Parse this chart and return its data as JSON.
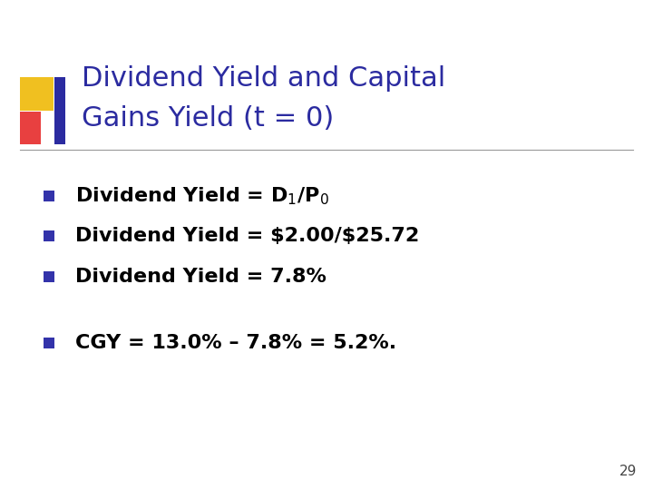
{
  "title_line1": "Dividend Yield and Capital",
  "title_line2": "Gains Yield (t = 0)",
  "title_color": "#2B2BA0",
  "background_color": "#FFFFFF",
  "bullet_color": "#3333AA",
  "bullet_items_plain": [
    "Dividend Yield = \\$2.00/\\$25.72",
    "Dividend Yield = 7.8%"
  ],
  "bullet_item4": "CGY = 13.0% – 7.8% = 5.2%.",
  "page_number": "29",
  "decoration_colors": {
    "yellow": "#F0C020",
    "red": "#E84040",
    "blue_dark": "#2B2BA0"
  },
  "separator_line_color": "#999999",
  "text_color": "#000000",
  "title_fontsize": 22,
  "bullet_fontsize": 16,
  "page_fontsize": 11
}
